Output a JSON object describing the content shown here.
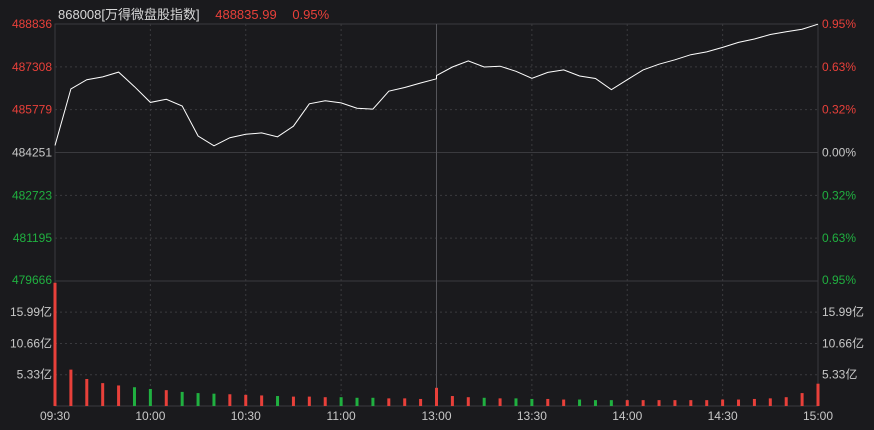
{
  "header": {
    "name": "868008[万得微盘股指数]",
    "last_value": "488835.99",
    "change_pct": "0.95%"
  },
  "colors": {
    "background": "#1a1a1d",
    "up": "#e8403a",
    "down": "#20b040",
    "neutral": "#c8c8c8",
    "grid": "#3a3a3e",
    "line": "#ffffff"
  },
  "chart_data": {
    "type": "line",
    "price": {
      "left_ticks": [
        "488836",
        "487308",
        "485779",
        "484251",
        "482723",
        "481195",
        "479666"
      ],
      "right_ticks": [
        "0.95%",
        "0.63%",
        "0.32%",
        "0.00%",
        "0.32%",
        "0.63%",
        "0.95%"
      ],
      "tick_colors": [
        "up",
        "up",
        "up",
        "neutral",
        "down",
        "down",
        "down"
      ],
      "ylim": [
        479666,
        488836
      ],
      "baseline": 484251,
      "x": [
        "09:30",
        "09:35",
        "09:40",
        "09:45",
        "09:50",
        "09:55",
        "10:00",
        "10:05",
        "10:10",
        "10:15",
        "10:20",
        "10:25",
        "10:30",
        "10:35",
        "10:40",
        "10:45",
        "10:50",
        "10:55",
        "11:00",
        "11:05",
        "11:10",
        "11:15",
        "11:20",
        "11:25",
        "11:30",
        "13:00",
        "13:05",
        "13:10",
        "13:15",
        "13:20",
        "13:25",
        "13:30",
        "13:35",
        "13:40",
        "13:45",
        "13:50",
        "13:55",
        "14:00",
        "14:05",
        "14:10",
        "14:15",
        "14:20",
        "14:25",
        "14:30",
        "14:35",
        "14:40",
        "14:45",
        "14:50",
        "14:55",
        "15:00"
      ],
      "y": [
        484500,
        486520,
        486850,
        486950,
        487120,
        486600,
        486040,
        486150,
        485910,
        484840,
        484490,
        484780,
        484900,
        484950,
        484810,
        485190,
        485990,
        486100,
        486020,
        485830,
        485800,
        486440,
        486570,
        486730,
        486880,
        487000,
        487300,
        487520,
        487300,
        487330,
        487150,
        486900,
        487110,
        487200,
        486980,
        486890,
        486490,
        486850,
        487200,
        487400,
        487560,
        487740,
        487840,
        488000,
        488180,
        488300,
        488460,
        488560,
        488650,
        488830
      ]
    },
    "volume": {
      "left_ticks": [
        "15.99亿",
        "10.66亿",
        "5.33亿"
      ],
      "right_ticks": [
        "15.99亿",
        "10.66亿",
        "5.33亿"
      ],
      "ylim": [
        0,
        21.3
      ],
      "unit": "亿",
      "x": [
        "09:30",
        "09:35",
        "09:40",
        "09:45",
        "09:50",
        "09:55",
        "10:00",
        "10:05",
        "10:10",
        "10:15",
        "10:20",
        "10:25",
        "10:30",
        "10:35",
        "10:40",
        "10:45",
        "10:50",
        "10:55",
        "11:00",
        "11:05",
        "11:10",
        "11:15",
        "11:20",
        "11:25",
        "11:30",
        "13:00",
        "13:05",
        "13:10",
        "13:15",
        "13:20",
        "13:25",
        "13:30",
        "13:35",
        "13:40",
        "13:45",
        "13:50",
        "13:55",
        "14:00",
        "14:05",
        "14:10",
        "14:15",
        "14:20",
        "14:25",
        "14:30",
        "14:35",
        "14:40",
        "14:45",
        "14:50",
        "14:55",
        "15:00"
      ],
      "values": [
        21.0,
        6.2,
        4.6,
        3.9,
        3.5,
        3.2,
        2.9,
        2.7,
        2.4,
        2.2,
        2.1,
        2.0,
        1.9,
        1.8,
        1.7,
        1.6,
        1.6,
        1.5,
        1.5,
        1.4,
        1.4,
        1.3,
        1.3,
        1.2,
        1.2,
        3.1,
        1.7,
        1.5,
        1.4,
        1.3,
        1.3,
        1.2,
        1.2,
        1.1,
        1.1,
        1.0,
        1.0,
        1.0,
        1.0,
        1.0,
        1.0,
        1.0,
        1.0,
        1.1,
        1.1,
        1.2,
        1.3,
        1.5,
        2.2,
        3.8
      ]
    },
    "x_ticks": [
      "09:30",
      "10:00",
      "10:30",
      "11:00",
      "13:00",
      "13:30",
      "14:00",
      "14:30",
      "15:00"
    ],
    "grid": true
  }
}
